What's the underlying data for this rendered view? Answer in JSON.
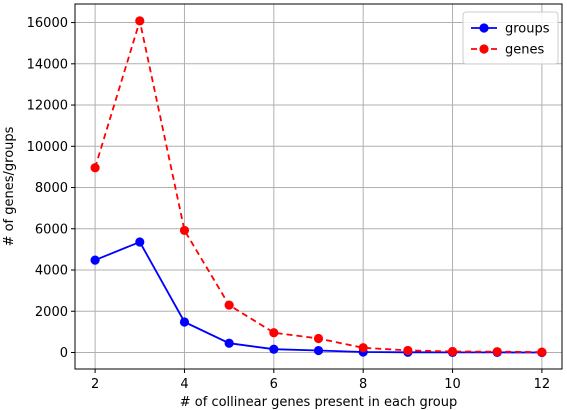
{
  "chart_data": {
    "type": "line",
    "title": "",
    "xlabel": "# of collinear genes present in each group",
    "ylabel": "# of genes/groups",
    "xlim": [
      1.55,
      12.45
    ],
    "ylim": [
      -800,
      16900
    ],
    "x_ticks": [
      2,
      4,
      6,
      8,
      10,
      12
    ],
    "y_ticks": [
      0,
      2000,
      4000,
      6000,
      8000,
      10000,
      12000,
      14000,
      16000
    ],
    "x_tick_labels": [
      "2",
      "4",
      "6",
      "8",
      "10",
      "12"
    ],
    "y_tick_labels": [
      "0",
      "2000",
      "4000",
      "6000",
      "8000",
      "10000",
      "12000",
      "14000",
      "16000"
    ],
    "grid": true,
    "legend_position": "top-right",
    "x": [
      2,
      3,
      4,
      5,
      6,
      7,
      8,
      9,
      10,
      11,
      12
    ],
    "series": [
      {
        "name": "groups",
        "color": "#0000ff",
        "line_style": "solid",
        "values": [
          4480,
          5360,
          1480,
          450,
          160,
          95,
          25,
          10,
          6,
          4,
          2
        ]
      },
      {
        "name": "genes",
        "color": "#ff0000",
        "line_style": "dashed",
        "values": [
          8960,
          16080,
          5920,
          2300,
          960,
          680,
          230,
          100,
          50,
          40,
          20
        ]
      }
    ]
  }
}
